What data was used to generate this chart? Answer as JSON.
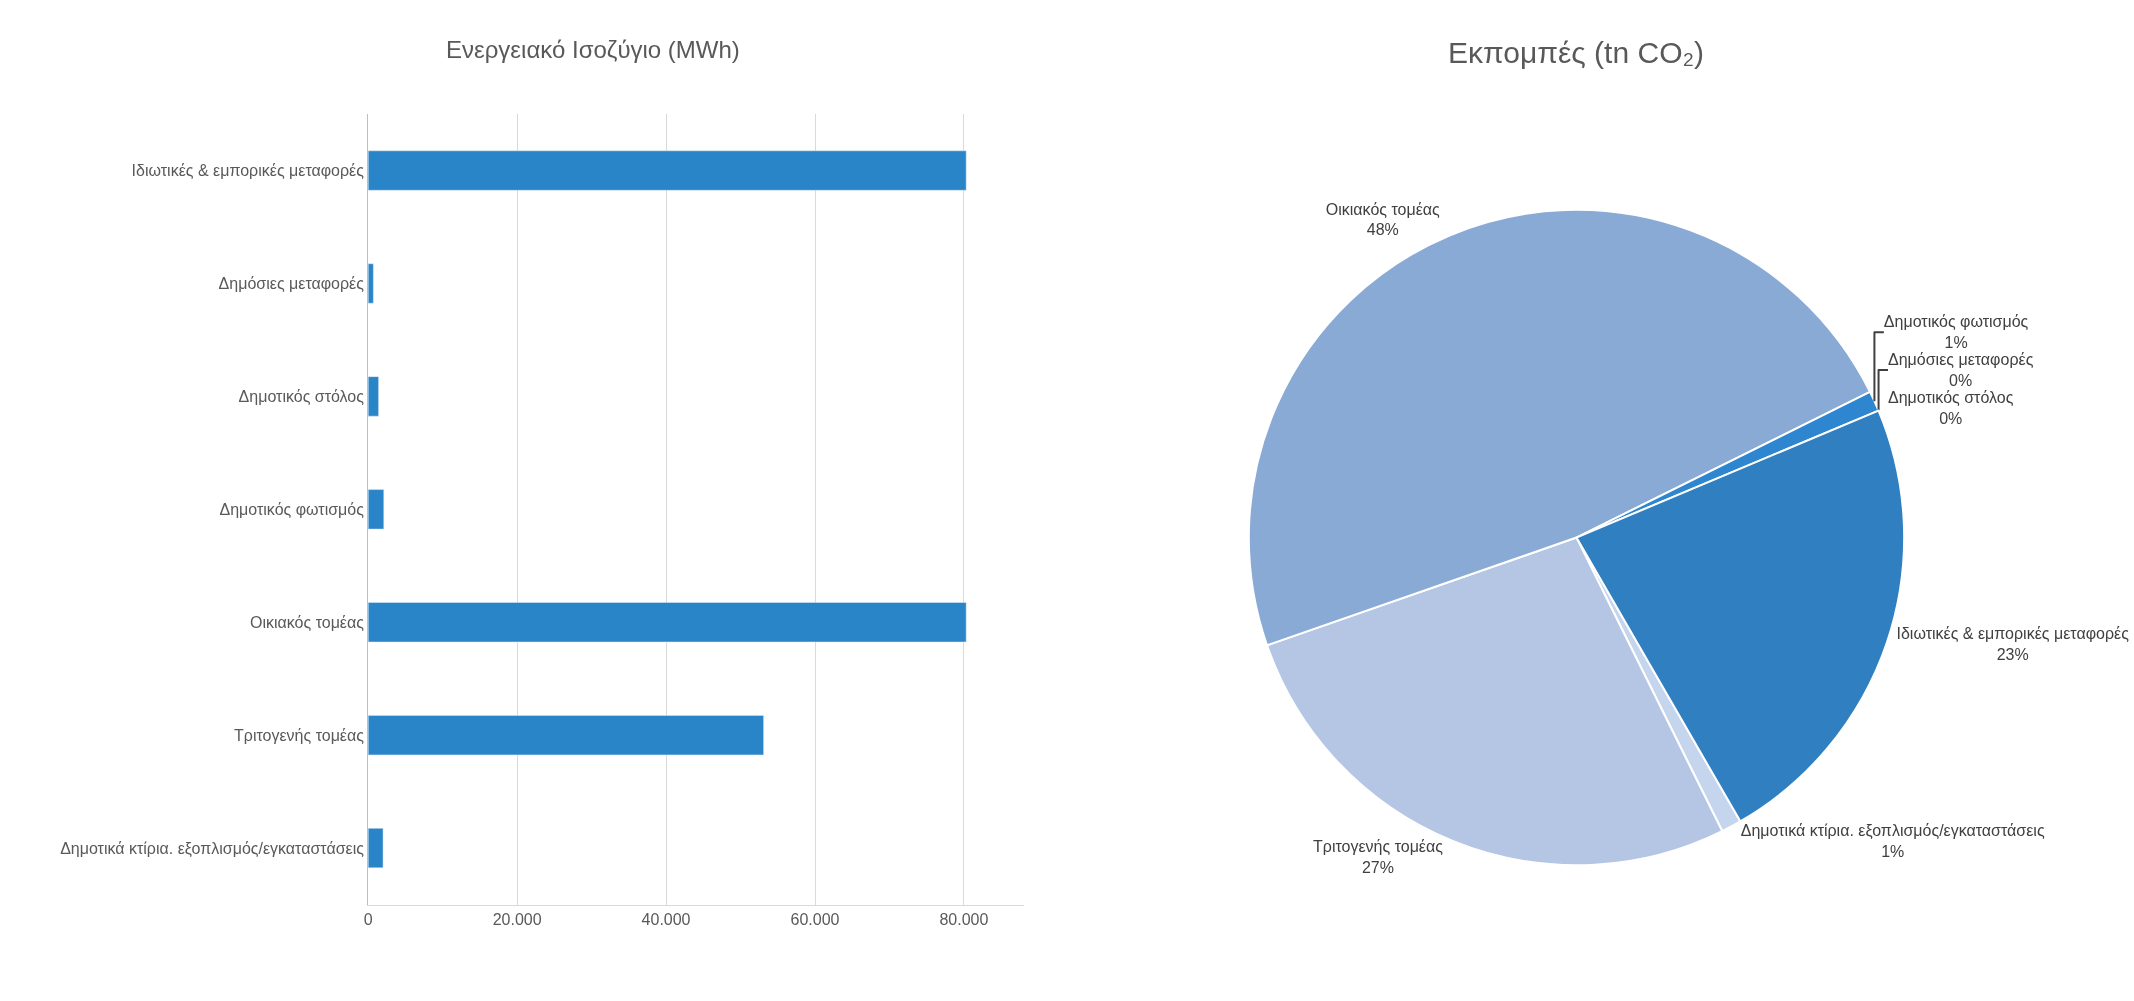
{
  "chart_data": [
    {
      "type": "bar",
      "title": "Ενεργειακό Ισοζύγιο (MWh)",
      "orientation": "horizontal",
      "categories": [
        "Ιδιωτικές & εμπορικές μεταφορές",
        "Δημόσιες μεταφορές",
        "Δημοτικός στόλος",
        "Δημοτικός φωτισμός",
        "Οικιακός τομέας",
        "Τριτογενής τομέας",
        "Δημοτικά κτίρια. εξοπλισμός/εγκαταστάσεις"
      ],
      "values": [
        80300,
        700,
        1400,
        2100,
        80300,
        53100,
        2000
      ],
      "color": "#2a84c8",
      "xlim": [
        0,
        88000
      ],
      "xticks": [
        0,
        {
          "value": 20000,
          "label": "20.000"
        },
        {
          "value": 40000,
          "label": "40.000"
        },
        {
          "value": 60000,
          "label": "60.000"
        },
        {
          "value": 80000,
          "label": "80.000"
        }
      ],
      "grid": "x",
      "legend": false
    },
    {
      "type": "pie",
      "title": "Εκπομπές (tn CO₂)",
      "categories": [
        "Δημοτικά κτίρια. εξοπλισμός/εγκαταστάσεις",
        "Τριτογενής τομέας",
        "Οικιακός τομέας",
        "Δημοτικός φωτισμός",
        "Δημοτικός στόλος",
        "Δημόσιες μεταφορές",
        "Ιδιωτικές & εμπορικές μεταφορές"
      ],
      "values": [
        1,
        27,
        48,
        1,
        0,
        0,
        23
      ],
      "value_labels": [
        "1%",
        "27%",
        "48%",
        "1%",
        "0%",
        "0%",
        "23%"
      ],
      "colors": [
        "#c5d5ee",
        "#b4c6e4",
        "#8aaad6",
        "#2e86d0",
        "#1f5f99",
        "#3a7cc0",
        "#2f7fc1"
      ],
      "legend": false
    }
  ]
}
